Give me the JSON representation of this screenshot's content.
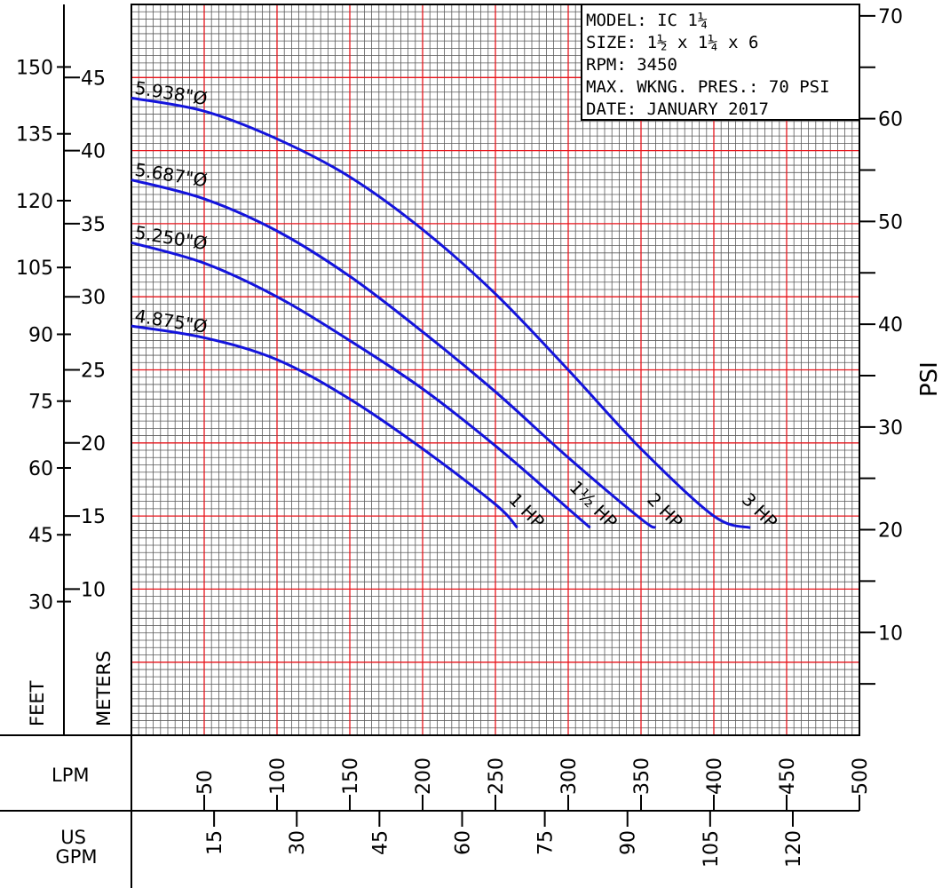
{
  "chart_data": {
    "type": "line",
    "info_box": {
      "model": "MODEL: IC 1¼",
      "size": "SIZE: 1½ x 1¼ x 6",
      "rpm": "RPM: 3450",
      "pressure": "MAX. WKNG. PRES.: 70 PSI",
      "date": "DATE: JANUARY 2017"
    },
    "axes": {
      "feet_label": "FEET",
      "meters_label": "METERS",
      "psi_label": "PSI",
      "lpm_label": "LPM",
      "gpm_label": "US\nGPM",
      "feet_ticks": [
        30,
        45,
        60,
        75,
        90,
        105,
        120,
        135,
        150
      ],
      "meters_ticks": [
        10,
        15,
        20,
        25,
        30,
        35,
        40,
        45
      ],
      "psi_ticks": [
        10,
        20,
        30,
        40,
        50,
        60,
        70
      ],
      "lpm_ticks": [
        50,
        100,
        150,
        200,
        250,
        300,
        350,
        400,
        450,
        500
      ],
      "gpm_ticks": [
        15,
        30,
        45,
        60,
        75,
        90,
        105,
        120
      ],
      "x_range_lpm": [
        0,
        500
      ],
      "y_range_m": [
        0,
        50
      ],
      "grid": true
    },
    "series": [
      {
        "name": "5.938\"Ø",
        "hp": "3 HP",
        "x_lpm": [
          0,
          50,
          100,
          150,
          200,
          250,
          300,
          350,
          400,
          425
        ],
        "y_m": [
          43.6,
          42.7,
          40.8,
          38.2,
          34.6,
          30.2,
          25.0,
          19.6,
          15.0,
          14.2
        ]
      },
      {
        "name": "5.687\"Ø",
        "hp": "2 HP",
        "x_lpm": [
          0,
          50,
          100,
          150,
          200,
          250,
          300,
          350,
          360
        ],
        "y_m": [
          38.0,
          36.7,
          34.5,
          31.4,
          27.6,
          23.5,
          19.0,
          14.8,
          14.2
        ]
      },
      {
        "name": "5.250\"Ø",
        "hp": "1½ HP",
        "x_lpm": [
          0,
          50,
          100,
          150,
          200,
          250,
          300,
          315
        ],
        "y_m": [
          33.7,
          32.3,
          30.0,
          27.0,
          23.7,
          19.8,
          15.5,
          14.2
        ]
      },
      {
        "name": "4.875\"Ø",
        "hp": "1 HP",
        "x_lpm": [
          0,
          50,
          100,
          150,
          200,
          250,
          265
        ],
        "y_m": [
          28.0,
          27.2,
          25.7,
          23.0,
          19.6,
          15.8,
          14.2
        ]
      }
    ]
  }
}
